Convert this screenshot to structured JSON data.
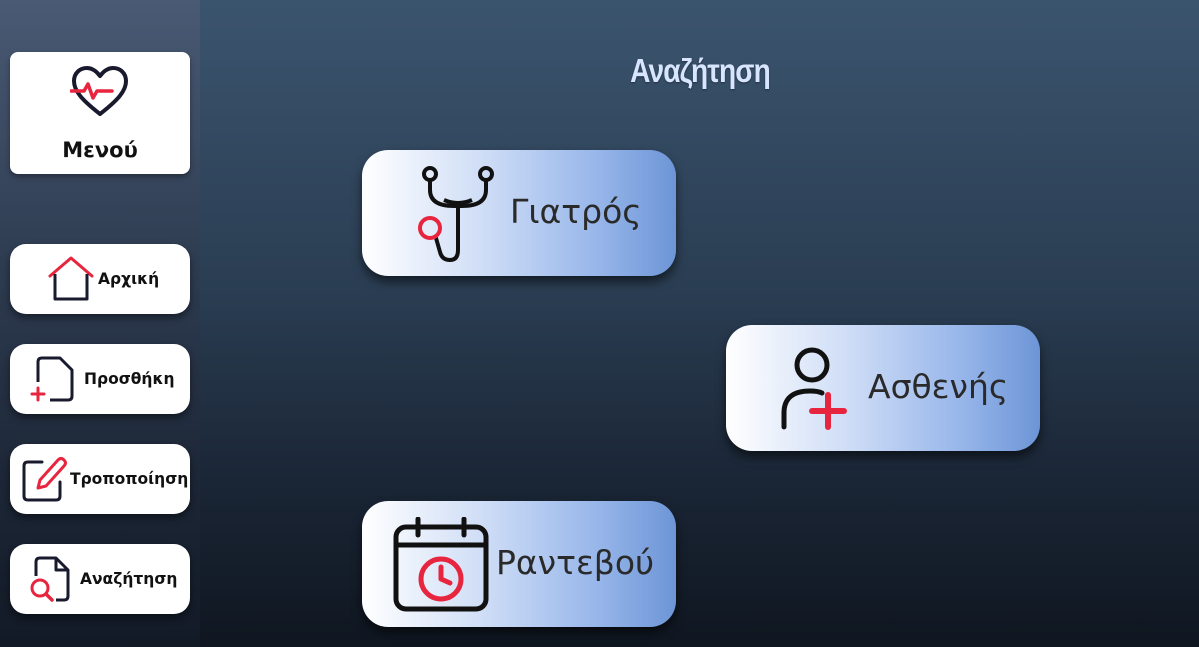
{
  "page": {
    "title": "Αναζήτηση"
  },
  "sidebar": {
    "menu_label": "Μενού",
    "items": [
      {
        "label": "Αρχική",
        "icon": "home-icon"
      },
      {
        "label": "Προσθήκη",
        "icon": "add-document-icon"
      },
      {
        "label": "Τροποποίηση",
        "icon": "edit-icon"
      },
      {
        "label": "Αναζήτηση",
        "icon": "search-document-icon"
      }
    ]
  },
  "search_options": [
    {
      "label": "Γιατρός",
      "icon": "stethoscope-icon"
    },
    {
      "label": "Ασθενής",
      "icon": "add-patient-icon"
    },
    {
      "label": "Ραντεβού",
      "icon": "calendar-clock-icon"
    }
  ],
  "colors": {
    "accent_red": "#e8253f",
    "icon_dark": "#1a1a2e",
    "title_color": "#d7e5ff"
  }
}
